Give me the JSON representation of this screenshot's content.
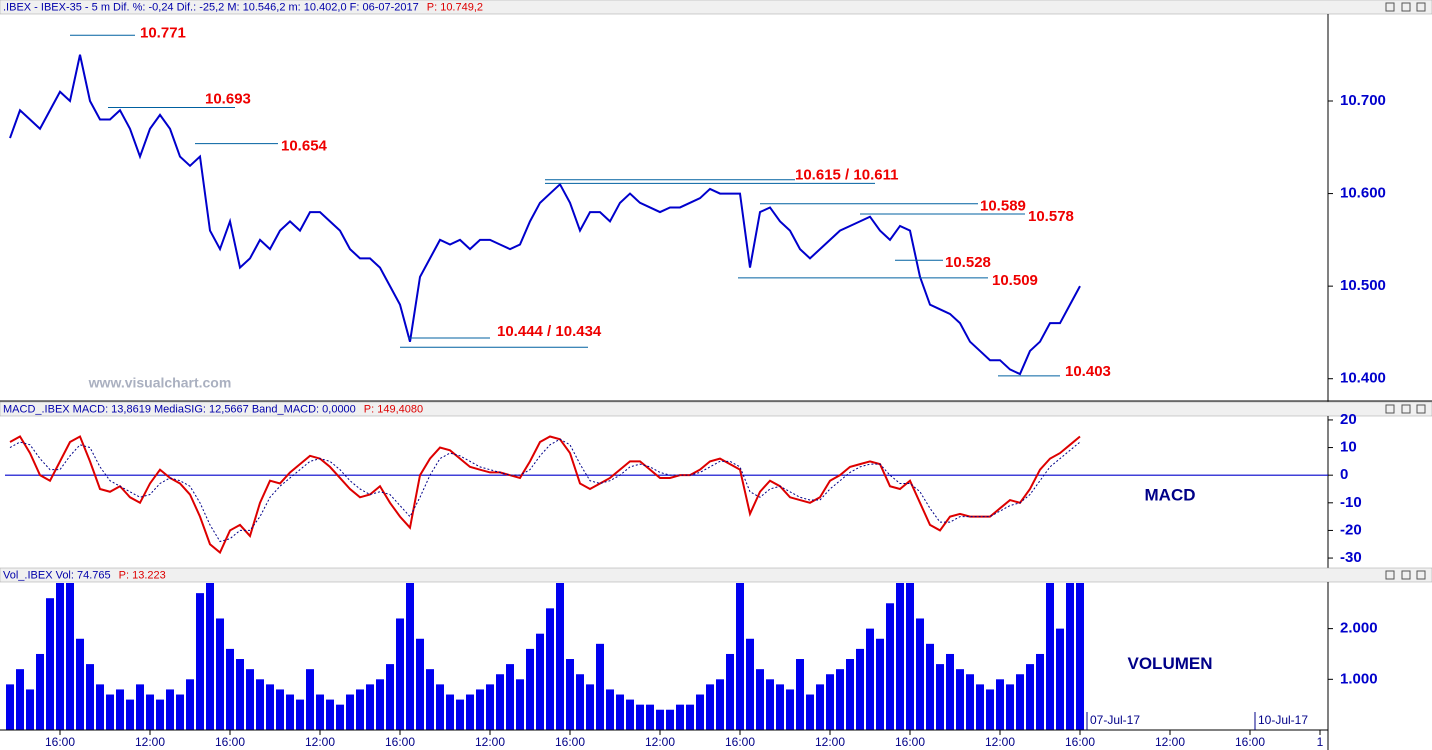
{
  "chart_data": [
    {
      "type": "line",
      "header": ".IBEX - IBEX-35 - 5 m  Dif. %: -0,24  Dif.: -25,2  M: 10.546,2  m: 10.402,0  F: 06-07-2017",
      "header_value": "P: 10.749,2",
      "watermark": "www.visualchart.com",
      "color": "#0000cc",
      "ylim": [
        10377,
        10794
      ],
      "yticks": [
        {
          "value": 10400,
          "label": "10.400"
        },
        {
          "value": 10500,
          "label": "10.500"
        },
        {
          "value": 10600,
          "label": "10.600"
        },
        {
          "value": 10700,
          "label": "10.700"
        }
      ],
      "values": [
        10660,
        10690,
        10680,
        10670,
        10690,
        10710,
        10700,
        10750,
        10700,
        10680,
        10680,
        10690,
        10670,
        10640,
        10670,
        10685,
        10670,
        10640,
        10630,
        10640,
        10560,
        10540,
        10570,
        10520,
        10530,
        10550,
        10540,
        10560,
        10570,
        10560,
        10580,
        10580,
        10570,
        10560,
        10540,
        10530,
        10530,
        10520,
        10500,
        10480,
        10440,
        10510,
        10530,
        10550,
        10545,
        10550,
        10540,
        10550,
        10550,
        10545,
        10540,
        10545,
        10570,
        10590,
        10600,
        10610,
        10590,
        10560,
        10580,
        10580,
        10570,
        10590,
        10600,
        10590,
        10585,
        10580,
        10585,
        10585,
        10590,
        10595,
        10605,
        10600,
        10600,
        10600,
        10520,
        10580,
        10585,
        10570,
        10560,
        10540,
        10530,
        10540,
        10550,
        10560,
        10565,
        10570,
        10575,
        10560,
        10550,
        10565,
        10560,
        10510,
        10480,
        10475,
        10470,
        10460,
        10440,
        10430,
        10420,
        10420,
        10410,
        10405,
        10430,
        10440,
        10460,
        10460,
        10480,
        10500,
        null,
        null,
        null,
        null,
        null,
        null,
        null,
        null,
        null,
        null,
        null,
        null,
        null,
        null,
        null,
        null,
        null,
        null,
        null,
        null,
        null,
        null,
        null,
        null
      ],
      "annotations": [
        {
          "text": "10.771",
          "values": [
            10771
          ]
        },
        {
          "text": "10.693",
          "values": [
            10693
          ]
        },
        {
          "text": "10.654",
          "values": [
            10654
          ]
        },
        {
          "text": "10.615 / 10.611",
          "values": [
            10615,
            10611
          ]
        },
        {
          "text": "10.589",
          "values": [
            10589
          ]
        },
        {
          "text": "10.578",
          "values": [
            10578
          ]
        },
        {
          "text": "10.528",
          "values": [
            10528
          ]
        },
        {
          "text": "10.509",
          "values": [
            10509
          ]
        },
        {
          "text": "10.444 / 10.434",
          "values": [
            10444,
            10434
          ]
        },
        {
          "text": "10.403",
          "values": [
            10403
          ]
        }
      ]
    },
    {
      "type": "line",
      "header": "MACD_.IBEX  MACD: 13,8619  MediaSIG: 12,5667  Band_MACD: 0,0000",
      "header_value": "P: 149,4080",
      "label": "MACD",
      "band": 0,
      "band_color": "#0000cc",
      "ylim": [
        -33.6,
        20.7
      ],
      "yticks": [
        -30,
        -20,
        -10,
        0,
        10,
        20
      ],
      "series": [
        {
          "color": "#dd0000",
          "values": [
            12,
            14,
            8,
            0,
            -2,
            5,
            12,
            14,
            5,
            -5,
            -6,
            -4,
            -8,
            -10,
            -3,
            2,
            -1,
            -3,
            -7,
            -15,
            -25,
            -28,
            -20,
            -18,
            -22,
            -10,
            -2,
            -3,
            1,
            4,
            7,
            6,
            3,
            -1,
            -5,
            -8,
            -7,
            -4,
            -10,
            -15,
            -19,
            0,
            6,
            10,
            9,
            6,
            3,
            2,
            1,
            1,
            0,
            -1,
            5,
            12,
            14,
            13,
            8,
            -3,
            -5,
            -3,
            -1,
            2,
            5,
            5,
            2,
            -1,
            -1,
            0,
            0,
            2,
            5,
            6,
            4,
            2,
            -14,
            -6,
            -2,
            -4,
            -8,
            -9,
            -10,
            -8,
            -2,
            0,
            3,
            4,
            5,
            4,
            -4,
            -5,
            -2,
            -10,
            -18,
            -20,
            -15,
            -14,
            -15,
            -15,
            -15,
            -12,
            -9,
            -10,
            -5,
            2,
            6,
            8,
            11,
            14,
            null,
            null,
            null,
            null,
            null,
            null,
            null,
            null,
            null,
            null,
            null,
            null,
            null,
            null,
            null,
            null,
            null,
            null,
            null,
            null,
            null,
            null,
            null,
            null
          ]
        },
        {
          "color": "#000088",
          "values": [
            10,
            12,
            11,
            6,
            2,
            2,
            7,
            11,
            10,
            3,
            -2,
            -4,
            -6,
            -8,
            -7,
            -3,
            -1,
            -2,
            -4,
            -10,
            -18,
            -24,
            -23,
            -20,
            -20,
            -15,
            -8,
            -4,
            -1,
            2,
            5,
            6,
            5,
            2,
            -2,
            -5,
            -7,
            -6,
            -7,
            -11,
            -15,
            -8,
            0,
            6,
            8,
            7,
            5,
            3,
            2,
            1,
            0,
            0,
            2,
            7,
            11,
            13,
            11,
            4,
            -2,
            -3,
            -2,
            0,
            3,
            4,
            3,
            1,
            0,
            0,
            0,
            1,
            3,
            5,
            5,
            3,
            -6,
            -8,
            -5,
            -4,
            -6,
            -8,
            -9,
            -9,
            -5,
            -2,
            1,
            3,
            4,
            4,
            0,
            -3,
            -3,
            -6,
            -12,
            -17,
            -17,
            -15,
            -15,
            -15,
            -15,
            -13,
            -11,
            -10,
            -7,
            -2,
            3,
            6,
            9,
            12,
            null,
            null,
            null,
            null,
            null,
            null,
            null,
            null,
            null,
            null,
            null,
            null,
            null,
            null,
            null,
            null,
            null,
            null,
            null,
            null,
            null,
            null,
            null,
            null
          ]
        }
      ]
    },
    {
      "type": "bar",
      "header": "Vol_.IBEX  Vol: 74.765",
      "header_value": "P: 13.223",
      "label": "VOLUMEN",
      "color": "#0000ee",
      "ylim": [
        0,
        2900
      ],
      "yticks": [
        {
          "value": 1000,
          "label": "1.000"
        },
        {
          "value": 2000,
          "label": "2.000"
        }
      ],
      "date_labels": [
        "07-Jul-17",
        "10-Jul-17"
      ],
      "categories": [
        null,
        null,
        null,
        null,
        null,
        "16:00",
        null,
        null,
        null,
        null,
        null,
        null,
        null,
        null,
        "12:00",
        null,
        null,
        null,
        null,
        null,
        null,
        null,
        "16:00",
        null,
        null,
        null,
        null,
        null,
        null,
        null,
        null,
        "12:00",
        null,
        null,
        null,
        null,
        null,
        null,
        null,
        "16:00",
        null,
        null,
        null,
        null,
        null,
        null,
        null,
        null,
        "12:00",
        null,
        null,
        null,
        null,
        null,
        null,
        null,
        "16:00",
        null,
        null,
        null,
        null,
        null,
        null,
        null,
        null,
        "12:00",
        null,
        null,
        null,
        null,
        null,
        null,
        null,
        "16:00",
        null,
        null,
        null,
        null,
        null,
        null,
        null,
        null,
        "12:00",
        null,
        null,
        null,
        null,
        null,
        null,
        null,
        "16:00",
        null,
        null,
        null,
        null,
        null,
        null,
        null,
        null,
        "12:00",
        null,
        null,
        null,
        null,
        null,
        null,
        null,
        "16:00",
        null,
        null,
        null,
        null,
        null,
        null,
        null,
        null,
        "12:00",
        null,
        null,
        null,
        null,
        null,
        null,
        null,
        "16:00",
        null,
        null,
        null,
        null,
        null,
        null,
        "1"
      ],
      "values": [
        900,
        1200,
        800,
        1500,
        2600,
        2900,
        2900,
        1800,
        1300,
        900,
        700,
        800,
        600,
        900,
        700,
        600,
        800,
        700,
        1000,
        2700,
        2900,
        2200,
        1600,
        1400,
        1200,
        1000,
        900,
        800,
        700,
        600,
        1200,
        700,
        600,
        500,
        700,
        800,
        900,
        1000,
        1300,
        2200,
        2900,
        1800,
        1200,
        900,
        700,
        600,
        700,
        800,
        900,
        1100,
        1300,
        1000,
        1600,
        1900,
        2400,
        2900,
        1400,
        1100,
        900,
        1700,
        800,
        700,
        600,
        500,
        500,
        400,
        400,
        500,
        500,
        700,
        900,
        1000,
        1500,
        2900,
        1800,
        1200,
        1000,
        900,
        800,
        1400,
        700,
        900,
        1100,
        1200,
        1400,
        1600,
        2000,
        1800,
        2500,
        2900,
        2900,
        2200,
        1700,
        1300,
        1500,
        1200,
        1100,
        900,
        800,
        1000,
        900,
        1100,
        1300,
        1500,
        2900,
        2000,
        2900,
        2900,
        null,
        null,
        null,
        null,
        null,
        null,
        null,
        null,
        null,
        null,
        null,
        null,
        null,
        null,
        null,
        null,
        null,
        null,
        null,
        null,
        null,
        null,
        null,
        null
      ]
    }
  ]
}
